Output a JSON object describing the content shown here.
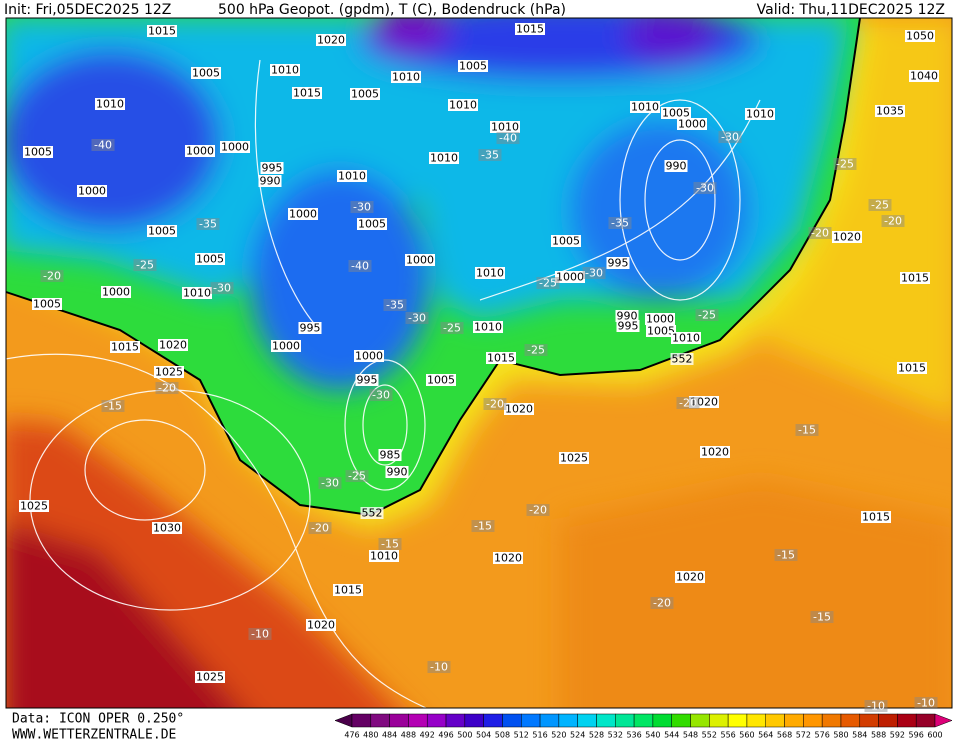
{
  "header": {
    "init": "Init: Fri,05DEC2025 12Z",
    "title": "500 hPa Geopot. (gpdm), T (C), Bodendruck (hPa)",
    "valid": "Valid: Thu,11DEC2025 12Z"
  },
  "footer": {
    "source": "Data: ICON OPER 0.250°",
    "site": "WWW.WETTERZENTRALE.DE"
  },
  "colorbar": {
    "ticks": [
      "476",
      "480",
      "484",
      "488",
      "492",
      "496",
      "500",
      "504",
      "508",
      "512",
      "516",
      "520",
      "524",
      "528",
      "532",
      "536",
      "540",
      "544",
      "548",
      "552",
      "556",
      "560",
      "564",
      "568",
      "572",
      "576",
      "580",
      "584",
      "588",
      "592",
      "596",
      "600"
    ],
    "colors": [
      "#4a004a",
      "#640064",
      "#800a80",
      "#9a009a",
      "#b400b4",
      "#9600c8",
      "#6400c8",
      "#3c00c8",
      "#1e1ee6",
      "#0050f0",
      "#0078ff",
      "#0096ff",
      "#00b4ff",
      "#00d2f0",
      "#00e6c8",
      "#00e696",
      "#00e664",
      "#00dc32",
      "#32dc00",
      "#96e600",
      "#dcf000",
      "#ffff00",
      "#ffe600",
      "#ffc800",
      "#ffaa00",
      "#ff9600",
      "#f07800",
      "#e65a00",
      "#d23c00",
      "#be1e00",
      "#aa0014",
      "#960028",
      "#dc0078"
    ]
  },
  "labels": {
    "isobars": [
      "1015",
      "1020",
      "1015",
      "1005",
      "1010",
      "1010",
      "1005",
      "1010",
      "1015",
      "1005",
      "1010",
      "1010",
      "1005",
      "1010",
      "1000",
      "1005",
      "1000",
      "1000",
      "1010",
      "995",
      "990",
      "1010",
      "1010",
      "990",
      "1000",
      "1000",
      "1005",
      "1005",
      "1005",
      "1000",
      "1010",
      "1005",
      "995",
      "1000",
      "1000",
      "1010",
      "1005",
      "995",
      "990",
      "995",
      "1000",
      "1005",
      "1010",
      "1010",
      "1015",
      "1020",
      "1000",
      "1000",
      "1015",
      "1025",
      "995",
      "1005",
      "1020",
      "1020",
      "1020",
      "1025",
      "985",
      "990",
      "1025",
      "1030",
      "1010",
      "1020",
      "1015",
      "1020",
      "1015",
      "1020",
      "1025",
      "1050",
      "1040",
      "1035",
      "1020",
      "1015",
      "1015"
    ],
    "temperatures": [
      "-40",
      "-35",
      "-40",
      "-30",
      "-30",
      "-25",
      "-25",
      "-20",
      "-20",
      "-35",
      "-30",
      "-25",
      "-20",
      "-30",
      "-40",
      "-35",
      "-30",
      "-25",
      "-35",
      "-30",
      "-25",
      "-25",
      "-25",
      "-20",
      "-15",
      "-30",
      "-20",
      "-20",
      "-15",
      "-30",
      "-25",
      "-20",
      "-15",
      "-20",
      "-15",
      "-15",
      "-20",
      "-15",
      "-10",
      "-10",
      "-10",
      "-10"
    ],
    "geopotential": [
      "552",
      "552"
    ]
  }
}
